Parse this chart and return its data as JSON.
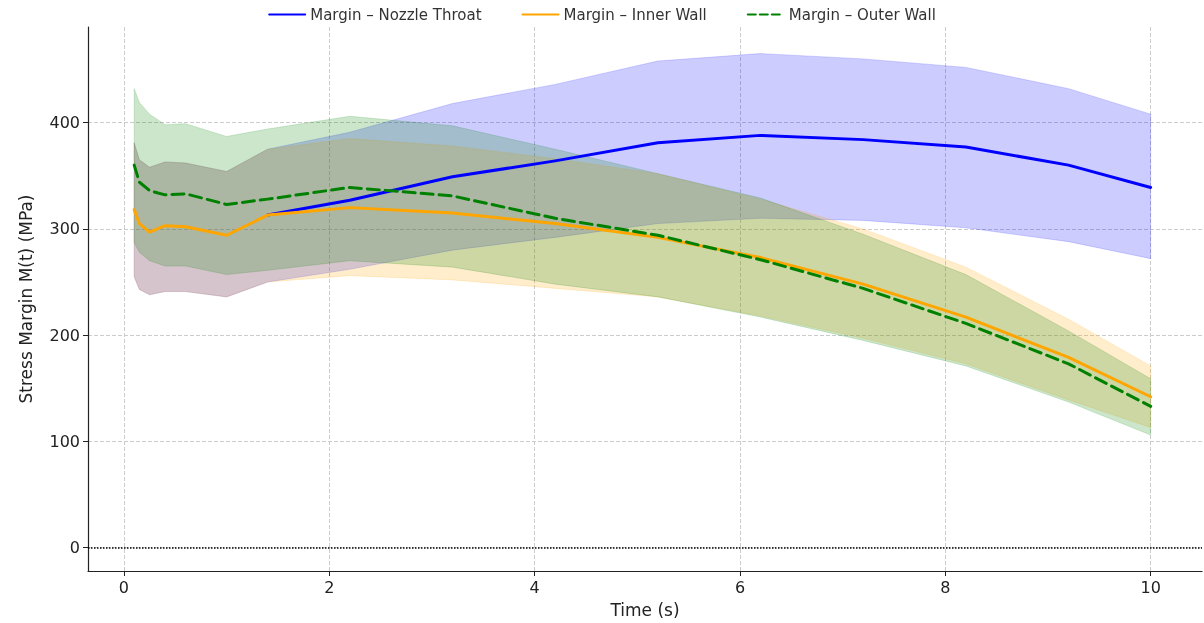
{
  "chart_data": {
    "type": "line",
    "xlabel": "Time (s)",
    "ylabel": "Stress Margin M(t) (MPa)",
    "x": [
      0.1,
      0.15,
      0.25,
      0.4,
      0.6,
      1,
      1.4,
      2.2,
      3.2,
      4.2,
      5.2,
      6.2,
      7.2,
      8.2,
      9.2,
      10
    ],
    "series": [
      {
        "name": "Margin – Nozzle Throat",
        "color": "#0000ff",
        "line_style": "solid",
        "values": [
          null,
          null,
          null,
          null,
          null,
          null,
          313,
          327,
          349,
          364,
          381,
          388,
          384,
          377,
          360,
          339
        ],
        "lower": [
          255,
          243,
          238,
          241,
          241,
          236,
          250,
          262,
          280,
          292,
          305,
          310,
          308,
          301,
          288,
          272
        ],
        "upper": [
          381,
          365,
          358,
          363,
          362,
          354,
          375,
          391,
          418,
          436,
          458,
          465,
          460,
          452,
          432,
          408
        ]
      },
      {
        "name": "Margin – Inner Wall",
        "color": "#ffa500",
        "line_style": "solid",
        "values": [
          318,
          305,
          297,
          303,
          302,
          294,
          313,
          320,
          315,
          305,
          292,
          273,
          248,
          217,
          179,
          142
        ],
        "lower": [
          255,
          243,
          238,
          241,
          241,
          236,
          250,
          256,
          252,
          244,
          236,
          218,
          197,
          173,
          139,
          113
        ],
        "upper": [
          381,
          365,
          358,
          363,
          362,
          354,
          375,
          385,
          378,
          366,
          352,
          328,
          300,
          264,
          215,
          171
        ]
      },
      {
        "name": "Margin – Outer Wall",
        "color": "#008000",
        "line_style": "dashed",
        "values": [
          360,
          344,
          336,
          332,
          333,
          323,
          328,
          339,
          331,
          310,
          294,
          271,
          244,
          211,
          173,
          133
        ],
        "lower": [
          287,
          278,
          270,
          265,
          265,
          257,
          261,
          270,
          264,
          248,
          236,
          217,
          195,
          171,
          137,
          106
        ],
        "upper": [
          432,
          419,
          408,
          398,
          399,
          387,
          394,
          406,
          397,
          375,
          352,
          329,
          295,
          257,
          204,
          159
        ]
      }
    ],
    "xlim": [
      -0.35,
      10.5
    ],
    "ylim": [
      -22,
      490
    ],
    "xticks": [
      0,
      2,
      4,
      6,
      8,
      10
    ],
    "yticks": [
      0,
      100,
      200,
      300,
      400
    ],
    "ref_lines": [
      {
        "axis": "y",
        "value": 0,
        "color": "#000000",
        "line_style": "dotted"
      }
    ],
    "grid": true,
    "legend": "top",
    "marker": "none"
  }
}
